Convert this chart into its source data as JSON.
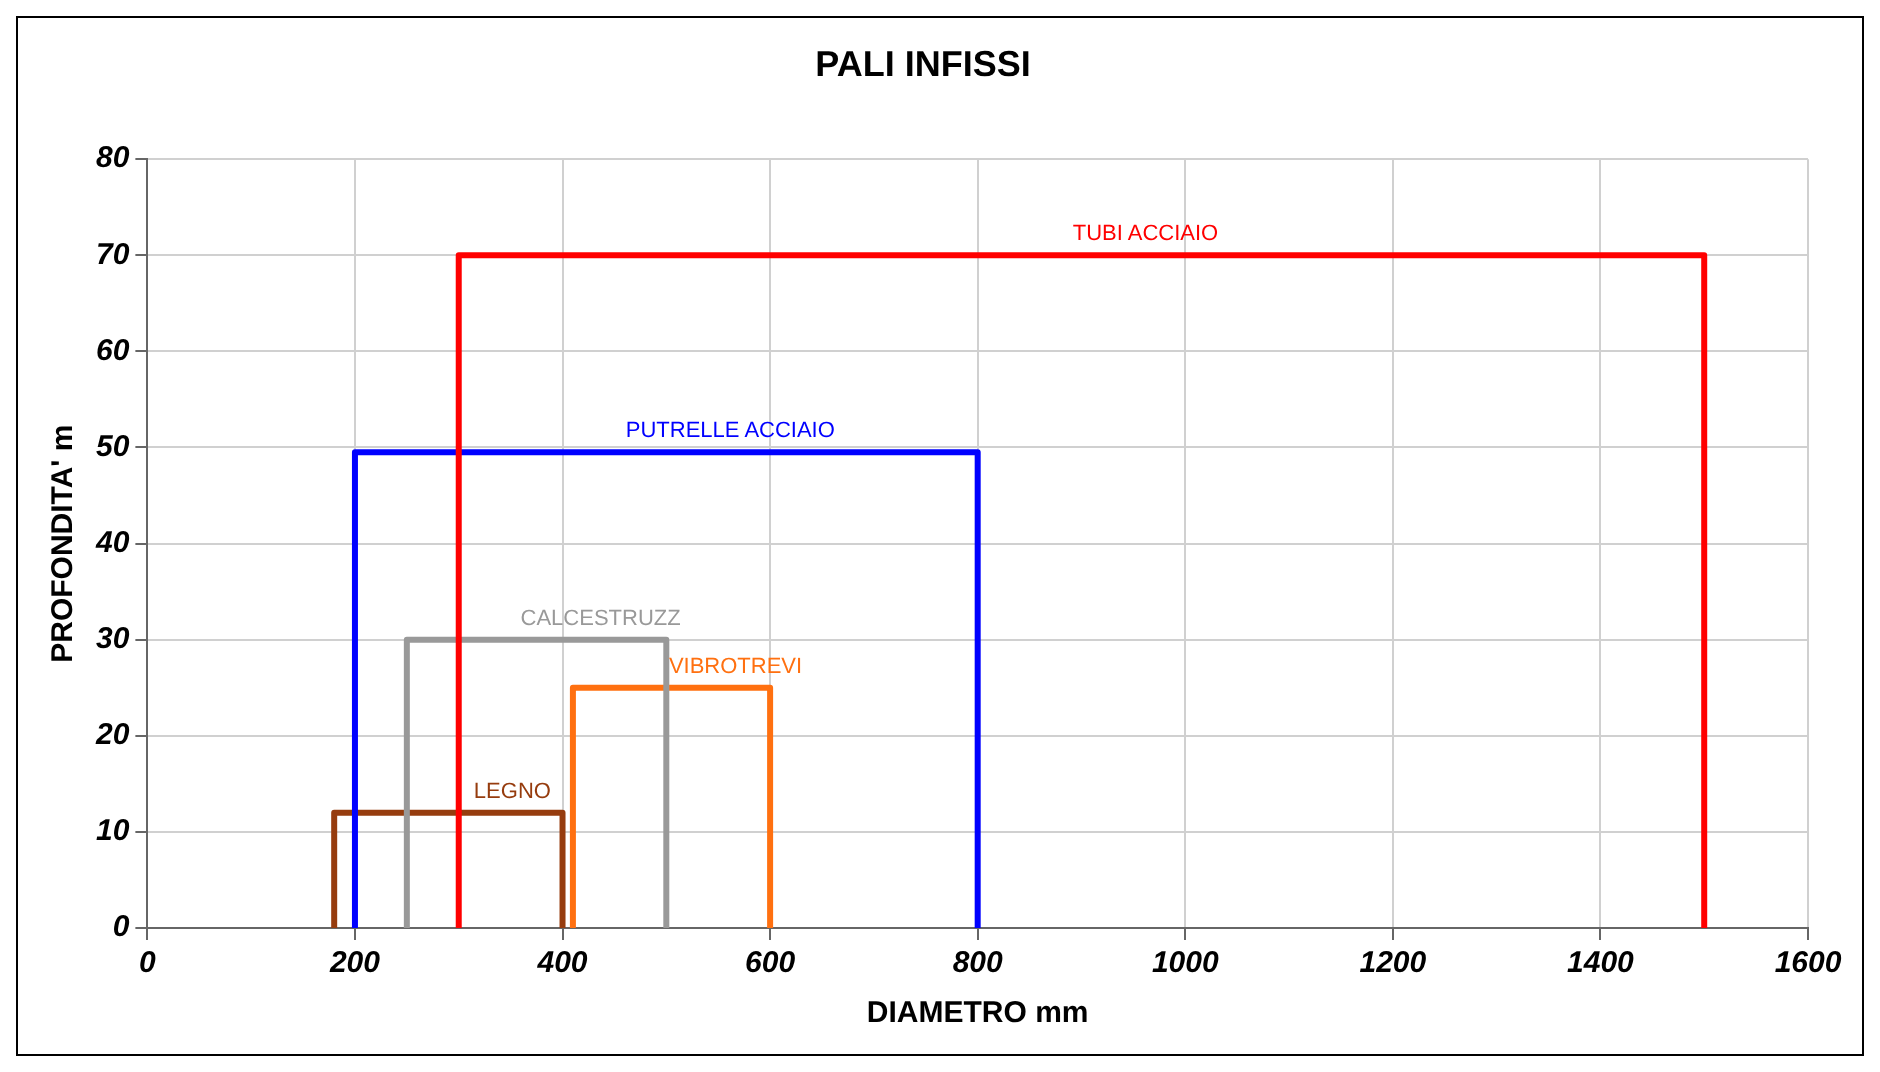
{
  "chart_data": {
    "type": "line",
    "title": "PALI INFISSI",
    "xlabel": "DIAMETRO mm",
    "ylabel": "PROFONDITA' m",
    "xlim": [
      0,
      1600
    ],
    "xticks": [
      0,
      200,
      400,
      600,
      800,
      1000,
      1200,
      1400,
      1600
    ],
    "ylim": [
      0,
      80
    ],
    "yticks": [
      0,
      10,
      20,
      30,
      40,
      50,
      60,
      70,
      80
    ],
    "grid": true,
    "legend": false,
    "marker": "none",
    "line_style": "solid",
    "series": [
      {
        "name": "TUBI ACCIAIO",
        "color": "#ff0000",
        "x": [
          300,
          300,
          1500,
          1500
        ],
        "values": [
          0,
          70,
          70,
          0
        ]
      },
      {
        "name": "PUTRELLE ACCIAIO",
        "color": "#0000ff",
        "x": [
          200,
          200,
          800,
          800
        ],
        "values": [
          0,
          49.5,
          49.5,
          0
        ]
      },
      {
        "name": "CALCESTRUZZ",
        "color": "#999999",
        "x": [
          250,
          250,
          500,
          500
        ],
        "values": [
          0,
          30,
          30,
          0
        ]
      },
      {
        "name": "VIBROTREVI",
        "color": "#ff7010",
        "x": [
          410,
          410,
          600,
          600
        ],
        "values": [
          0,
          25,
          25,
          0
        ]
      },
      {
        "name": "LEGNO",
        "color": "#963c0e",
        "x": [
          180,
          180,
          400,
          400
        ],
        "values": [
          0,
          12,
          12,
          0
        ]
      }
    ]
  }
}
